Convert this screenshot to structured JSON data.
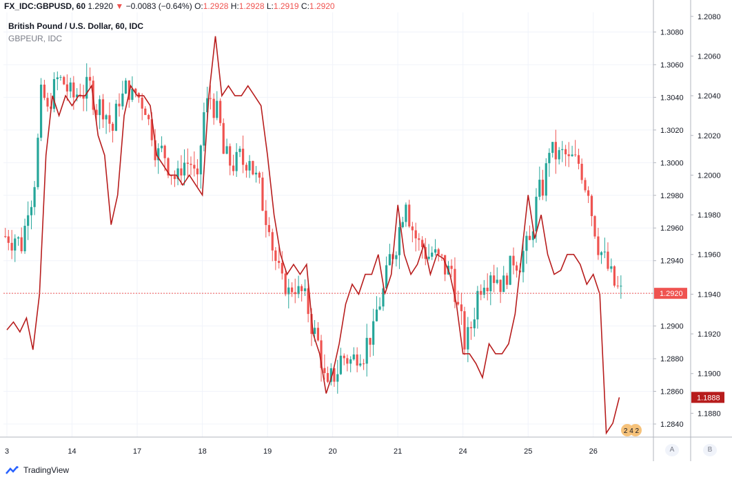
{
  "header": {
    "symbol": "FX_IDC:GBPUSD, 60",
    "last": "1.2920",
    "change": "−0.0083 (−0.64%)",
    "o_label": "O:",
    "o": "1.2928",
    "h_label": "H:",
    "h": "1.2928",
    "l_label": "L:",
    "l": "1.2919",
    "c_label": "C:",
    "c": "1.2920"
  },
  "legend": {
    "main": "British Pound / U.S. Dollar, 60, IDC",
    "compare": "GBPEUR, IDC"
  },
  "footer": {
    "brand": "TradingView"
  },
  "axis_buttons": {
    "a": "A",
    "b": "B"
  },
  "events_badge": {
    "numbers": "2 4 2"
  },
  "colors": {
    "up": "#26a69a",
    "down": "#ef5350",
    "compare": "#b71c1c",
    "grid": "#f0f3fa",
    "price_tag": "#ef5350",
    "compare_tag": "#b71c1c"
  },
  "chart_data": {
    "type": "candlestick",
    "title": "British Pound / U.S. Dollar, 60, IDC",
    "x_tick_labels": [
      "3",
      "14",
      "17",
      "18",
      "19",
      "20",
      "21",
      "24",
      "25",
      "26"
    ],
    "y_left_ticks": [
      "1.3080",
      "1.3060",
      "1.3040",
      "1.3020",
      "1.3000",
      "1.2980",
      "1.2960",
      "1.2940",
      "1.2920",
      "1.2900",
      "1.2880",
      "1.2860",
      "1.2840"
    ],
    "y_right_ticks": [
      "1.2080",
      "1.2060",
      "1.2040",
      "1.2020",
      "1.2000",
      "1.1980",
      "1.1960",
      "1.1940",
      "1.1920",
      "1.1900",
      "1.1880"
    ],
    "ylim_left": [
      1.2832,
      1.3092
    ],
    "ylim_right": [
      1.1868,
      1.2082
    ],
    "current_price": 1.292,
    "current_price_label": "1.2920",
    "compare_last_label": "1.1888",
    "series": [
      {
        "name": "GBPUSD",
        "type": "candlestick",
        "close_path": [
          [
            0,
            1.2955
          ],
          [
            2,
            1.2955
          ],
          [
            3,
            1.295
          ],
          [
            4,
            1.2975
          ],
          [
            5,
            1.299
          ],
          [
            6,
            1.304
          ],
          [
            7,
            1.303
          ],
          [
            8,
            1.3045
          ],
          [
            9,
            1.305
          ],
          [
            10,
            1.3045
          ],
          [
            11,
            1.304
          ],
          [
            12,
            1.3045
          ],
          [
            13,
            1.3045
          ],
          [
            14,
            1.304
          ],
          [
            15,
            1.3035
          ],
          [
            16,
            1.303
          ],
          [
            17,
            1.302
          ],
          [
            18,
            1.304
          ],
          [
            19,
            1.3045
          ],
          [
            20,
            1.304
          ],
          [
            21,
            1.304
          ],
          [
            22,
            1.3035
          ],
          [
            23,
            1.302
          ],
          [
            24,
            1.3005
          ],
          [
            25,
            1.3005
          ],
          [
            26,
            1.2995
          ],
          [
            27,
            1.299
          ],
          [
            28,
            1.3
          ],
          [
            29,
            1.3
          ],
          [
            30,
            1.2985
          ],
          [
            31,
            1.303
          ],
          [
            32,
            1.304
          ],
          [
            33,
            1.303
          ],
          [
            34,
            1.3005
          ],
          [
            35,
            1.3
          ],
          [
            36,
            1.3
          ],
          [
            37,
            1.3
          ],
          [
            38,
            1.3005
          ],
          [
            39,
            1.299
          ],
          [
            40,
            1.2975
          ],
          [
            41,
            1.2965
          ],
          [
            42,
            1.294
          ],
          [
            43,
            1.2925
          ],
          [
            44,
            1.292
          ],
          [
            45,
            1.2925
          ],
          [
            46,
            1.292
          ],
          [
            47,
            1.291
          ],
          [
            48,
            1.2895
          ],
          [
            49,
            1.288
          ],
          [
            50,
            1.286
          ],
          [
            51,
            1.287
          ],
          [
            52,
            1.288
          ],
          [
            53,
            1.288
          ],
          [
            54,
            1.288
          ],
          [
            55,
            1.2885
          ],
          [
            56,
            1.289
          ],
          [
            57,
            1.2895
          ],
          [
            58,
            1.2915
          ],
          [
            59,
            1.293
          ],
          [
            60,
            1.2945
          ],
          [
            61,
            1.296
          ],
          [
            62,
            1.298
          ],
          [
            63,
            1.296
          ],
          [
            64,
            1.295
          ],
          [
            65,
            1.2945
          ],
          [
            66,
            1.2945
          ],
          [
            67,
            1.294
          ],
          [
            68,
            1.2935
          ],
          [
            69,
            1.2935
          ],
          [
            70,
            1.291
          ],
          [
            71,
            1.289
          ],
          [
            72,
            1.29
          ],
          [
            73,
            1.292
          ],
          [
            74,
            1.293
          ],
          [
            75,
            1.2935
          ],
          [
            76,
            1.293
          ],
          [
            77,
            1.2925
          ],
          [
            78,
            1.2935
          ],
          [
            79,
            1.294
          ],
          [
            80,
            1.2945
          ],
          [
            81,
            1.295
          ],
          [
            82,
            1.2975
          ],
          [
            83,
            1.2985
          ],
          [
            84,
            1.301
          ],
          [
            85,
            1.3005
          ],
          [
            86,
            1.3005
          ],
          [
            87,
            1.3
          ],
          [
            88,
            1.3
          ],
          [
            89,
            1.2995
          ],
          [
            90,
            1.2985
          ],
          [
            91,
            1.296
          ],
          [
            92,
            1.2945
          ],
          [
            93,
            1.2935
          ],
          [
            94,
            1.2925
          ],
          [
            95,
            1.292
          ]
        ]
      },
      {
        "name": "GBPEUR",
        "type": "line",
        "values": [
          [
            0,
            1.1922
          ],
          [
            1,
            1.1926
          ],
          [
            2,
            1.1921
          ],
          [
            3,
            1.1928
          ],
          [
            4,
            1.1912
          ],
          [
            5,
            1.194
          ],
          [
            6,
            1.201
          ],
          [
            7,
            1.204
          ],
          [
            8,
            1.203
          ],
          [
            9,
            1.204
          ],
          [
            10,
            1.2035
          ],
          [
            11,
            1.204
          ],
          [
            12,
            1.204
          ],
          [
            13,
            1.2045
          ],
          [
            14,
            1.202
          ],
          [
            15,
            1.201
          ],
          [
            16,
            1.1975
          ],
          [
            17,
            1.199
          ],
          [
            18,
            1.203
          ],
          [
            19,
            1.2045
          ],
          [
            20,
            1.204
          ],
          [
            21,
            1.204
          ],
          [
            22,
            1.2035
          ],
          [
            23,
            1.201
          ],
          [
            24,
            1.2005
          ],
          [
            25,
            1.2
          ],
          [
            26,
            1.2
          ],
          [
            27,
            1.1995
          ],
          [
            28,
            1.2
          ],
          [
            29,
            1.1995
          ],
          [
            30,
            1.199
          ],
          [
            31,
            1.204
          ],
          [
            32,
            1.207
          ],
          [
            33,
            1.204
          ],
          [
            34,
            1.2045
          ],
          [
            35,
            1.204
          ],
          [
            36,
            1.204
          ],
          [
            37,
            1.2045
          ],
          [
            38,
            1.204
          ],
          [
            39,
            1.2035
          ],
          [
            40,
            1.201
          ],
          [
            41,
            1.198
          ],
          [
            42,
            1.196
          ],
          [
            43,
            1.195
          ],
          [
            44,
            1.1955
          ],
          [
            45,
            1.195
          ],
          [
            46,
            1.1955
          ],
          [
            47,
            1.192
          ],
          [
            48,
            1.191
          ],
          [
            49,
            1.189
          ],
          [
            50,
            1.19
          ],
          [
            51,
            1.1915
          ],
          [
            52,
            1.1935
          ],
          [
            53,
            1.1945
          ],
          [
            54,
            1.194
          ],
          [
            55,
            1.195
          ],
          [
            56,
            1.195
          ],
          [
            57,
            1.196
          ],
          [
            58,
            1.194
          ],
          [
            59,
            1.195
          ],
          [
            60,
            1.1985
          ],
          [
            61,
            1.196
          ],
          [
            62,
            1.195
          ],
          [
            63,
            1.1955
          ],
          [
            64,
            1.1965
          ],
          [
            65,
            1.195
          ],
          [
            66,
            1.196
          ],
          [
            67,
            1.1958
          ],
          [
            68,
            1.195
          ],
          [
            69,
            1.1935
          ],
          [
            70,
            1.191
          ],
          [
            71,
            1.191
          ],
          [
            72,
            1.1905
          ],
          [
            73,
            1.1898
          ],
          [
            74,
            1.1915
          ],
          [
            75,
            1.191
          ],
          [
            76,
            1.191
          ],
          [
            77,
            1.1915
          ],
          [
            78,
            1.193
          ],
          [
            79,
            1.196
          ],
          [
            80,
            1.199
          ],
          [
            81,
            1.1968
          ],
          [
            82,
            1.198
          ],
          [
            83,
            1.196
          ],
          [
            84,
            1.195
          ],
          [
            85,
            1.1952
          ],
          [
            86,
            1.196
          ],
          [
            87,
            1.196
          ],
          [
            88,
            1.1955
          ],
          [
            89,
            1.1945
          ],
          [
            90,
            1.195
          ],
          [
            91,
            1.194
          ],
          [
            92,
            1.187
          ],
          [
            93,
            1.1875
          ],
          [
            94,
            1.1888
          ]
        ]
      }
    ],
    "grid": true,
    "legend_position": "top-left"
  }
}
